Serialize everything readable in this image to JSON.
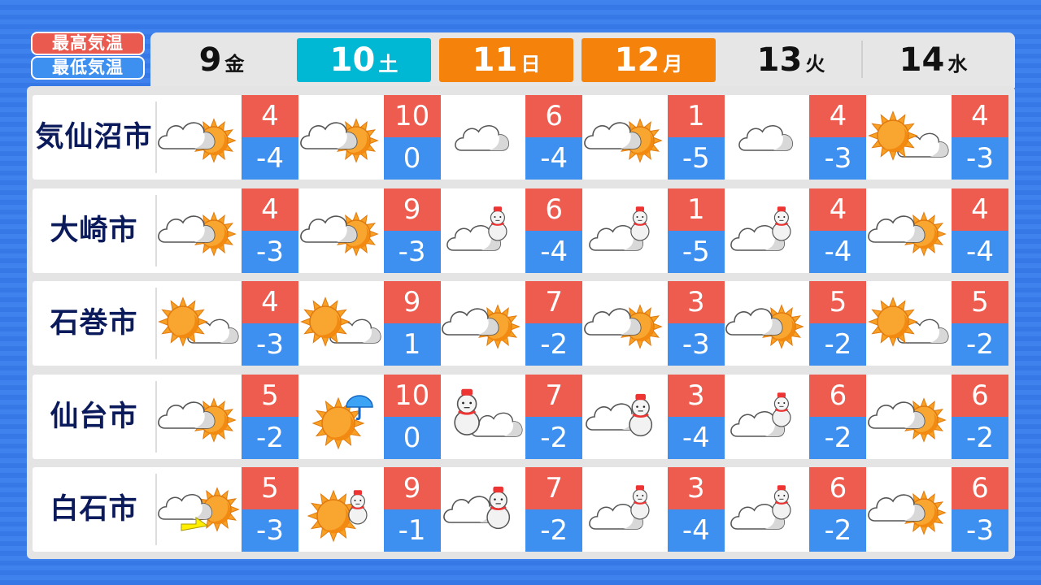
{
  "legend": {
    "high": "最高気温",
    "low": "最低気温",
    "high_color": "#ee5b4f",
    "low_color": "#3d8ff0"
  },
  "days": [
    {
      "num": "9",
      "weekday": "金",
      "style": "plain"
    },
    {
      "num": "10",
      "weekday": "土",
      "style": "cyan"
    },
    {
      "num": "11",
      "weekday": "日",
      "style": "orange"
    },
    {
      "num": "12",
      "weekday": "月",
      "style": "orange"
    },
    {
      "num": "13",
      "weekday": "火",
      "style": "plain"
    },
    {
      "num": "14",
      "weekday": "水",
      "style": "plain"
    }
  ],
  "cities": [
    {
      "name": "気仙沼市",
      "forecast": [
        {
          "icon": "cloud-sun",
          "high": "4",
          "low": "-4"
        },
        {
          "icon": "cloud-sun",
          "high": "10",
          "low": "0"
        },
        {
          "icon": "cloud",
          "high": "6",
          "low": "-4"
        },
        {
          "icon": "cloud-sun",
          "high": "1",
          "low": "-5"
        },
        {
          "icon": "cloud",
          "high": "4",
          "low": "-3"
        },
        {
          "icon": "sun-cloud",
          "high": "4",
          "low": "-3"
        }
      ]
    },
    {
      "name": "大崎市",
      "forecast": [
        {
          "icon": "cloud-sun",
          "high": "4",
          "low": "-3"
        },
        {
          "icon": "cloud-sun",
          "high": "9",
          "low": "-3"
        },
        {
          "icon": "cloud-snow",
          "high": "6",
          "low": "-4"
        },
        {
          "icon": "cloud-snow",
          "high": "1",
          "low": "-5"
        },
        {
          "icon": "cloud-snow",
          "high": "4",
          "low": "-4"
        },
        {
          "icon": "cloud-sun",
          "high": "4",
          "low": "-4"
        }
      ]
    },
    {
      "name": "石巻市",
      "forecast": [
        {
          "icon": "sun-cloud",
          "high": "4",
          "low": "-3"
        },
        {
          "icon": "sun-cloud",
          "high": "9",
          "low": "1"
        },
        {
          "icon": "cloud-sun",
          "high": "7",
          "low": "-2"
        },
        {
          "icon": "cloud-sun",
          "high": "3",
          "low": "-3"
        },
        {
          "icon": "cloud-sun",
          "high": "5",
          "low": "-2"
        },
        {
          "icon": "sun-cloud",
          "high": "5",
          "low": "-2"
        }
      ]
    },
    {
      "name": "仙台市",
      "forecast": [
        {
          "icon": "cloud-sun",
          "high": "5",
          "low": "-2"
        },
        {
          "icon": "sun-rain",
          "high": "10",
          "low": "0"
        },
        {
          "icon": "snow-cloud",
          "high": "7",
          "low": "-2"
        },
        {
          "icon": "cloud-snow-big",
          "high": "3",
          "low": "-4"
        },
        {
          "icon": "cloud-snow",
          "high": "6",
          "low": "-2"
        },
        {
          "icon": "cloud-sun",
          "high": "6",
          "low": "-2"
        }
      ]
    },
    {
      "name": "白石市",
      "forecast": [
        {
          "icon": "cloud-sun-then",
          "high": "5",
          "low": "-3"
        },
        {
          "icon": "sun-snow",
          "high": "9",
          "low": "-1"
        },
        {
          "icon": "cloud-snow-big",
          "high": "7",
          "low": "-2"
        },
        {
          "icon": "cloud-snow",
          "high": "3",
          "low": "-4"
        },
        {
          "icon": "cloud-snow",
          "high": "6",
          "low": "-2"
        },
        {
          "icon": "cloud-sun",
          "high": "6",
          "low": "-3"
        }
      ]
    }
  ]
}
